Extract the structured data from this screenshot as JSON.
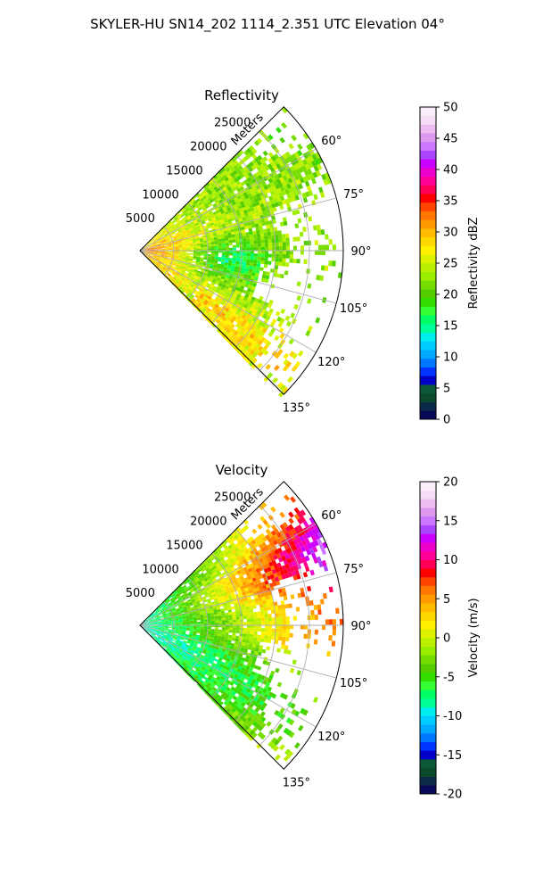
{
  "figure": {
    "suptitle": "SKYLER-HU  SN14_202  1114_2.351 UTC Elevation 04°"
  },
  "chart_data": [
    {
      "type": "heatmap",
      "projection": "polar-sector",
      "title": "Reflectivity",
      "radial_label": "Meters",
      "r_ticks": [
        5000,
        10000,
        15000,
        20000,
        25000
      ],
      "r_tick_labels": [
        "5000",
        "10000",
        "15000",
        "20000",
        "25000"
      ],
      "rlim": [
        0,
        30000
      ],
      "theta_ticks": [
        60,
        75,
        90,
        105,
        120,
        135
      ],
      "theta_tick_labels": [
        "60°",
        "75°",
        "90°",
        "105°",
        "120°",
        "135°"
      ],
      "theta_range": [
        45,
        135
      ],
      "grid": true,
      "colorbar": {
        "label": "Reflectivity dBZ",
        "min": 0,
        "max": 50,
        "ticks": [
          0,
          5,
          10,
          15,
          20,
          25,
          30,
          35,
          40,
          45,
          50
        ],
        "tick_labels": [
          "0",
          "5",
          "10",
          "15",
          "20",
          "25",
          "30",
          "35",
          "40",
          "45",
          "50"
        ],
        "colors": [
          "#0a0a5a",
          "#0b2a4a",
          "#0a4a2a",
          "#0a5a3a",
          "#0000c8",
          "#0033ff",
          "#0077ff",
          "#00aaff",
          "#00ccff",
          "#00eeee",
          "#00ff99",
          "#00ff66",
          "#33ff33",
          "#33dd00",
          "#55cc00",
          "#77dd00",
          "#99ee00",
          "#bbf000",
          "#ddf200",
          "#fff000",
          "#ffd700",
          "#ffbb00",
          "#ff9900",
          "#ff7700",
          "#ff4400",
          "#ff0000",
          "#ff0055",
          "#ff0099",
          "#ee00cc",
          "#cc00ff",
          "#aa44ff",
          "#cc77ff",
          "#dd99ee",
          "#eebbf0",
          "#f5ddf5",
          "#fbeefb"
        ]
      },
      "field_description_values": {
        "near_range_dBZ": 28,
        "central_dBZ": 14,
        "outer_dBZ": 22,
        "south_sector_dBZ": 27
      }
    },
    {
      "type": "heatmap",
      "projection": "polar-sector",
      "title": "Velocity",
      "radial_label": "Meters",
      "r_ticks": [
        5000,
        10000,
        15000,
        20000,
        25000
      ],
      "r_tick_labels": [
        "5000",
        "10000",
        "15000",
        "20000",
        "25000"
      ],
      "rlim": [
        0,
        30000
      ],
      "theta_ticks": [
        60,
        75,
        90,
        105,
        120,
        135
      ],
      "theta_tick_labels": [
        "60°",
        "75°",
        "90°",
        "105°",
        "120°",
        "135°"
      ],
      "theta_range": [
        45,
        135
      ],
      "grid": true,
      "colorbar": {
        "label": "Velocity (m/s)",
        "min": -20,
        "max": 20,
        "ticks": [
          -20,
          -15,
          -10,
          -5,
          0,
          5,
          10,
          15,
          20
        ],
        "tick_labels": [
          "-20",
          "-15",
          "-10",
          "-5",
          "0",
          "5",
          "10",
          "15",
          "20"
        ],
        "colors": [
          "#0a0a5a",
          "#0b2a4a",
          "#0a4a2a",
          "#0a5a3a",
          "#0000c8",
          "#0033ff",
          "#0077ff",
          "#00aaff",
          "#00ccff",
          "#00eeee",
          "#00ff99",
          "#00ff66",
          "#33ff33",
          "#33dd00",
          "#55cc00",
          "#77dd00",
          "#99ee00",
          "#bbf000",
          "#ddf200",
          "#fff000",
          "#ffd700",
          "#ffbb00",
          "#ff9900",
          "#ff7700",
          "#ff4400",
          "#ff0000",
          "#ff0055",
          "#ff0099",
          "#ee00cc",
          "#cc00ff",
          "#aa44ff",
          "#cc77ff",
          "#dd99ee",
          "#eebbf0",
          "#f5ddf5",
          "#fbeefb"
        ]
      },
      "field_description_values": {
        "near_range_ms": -9,
        "mid_range_ms": -3,
        "north_outer_ms": 11,
        "south_outer_ms": -4
      }
    }
  ]
}
